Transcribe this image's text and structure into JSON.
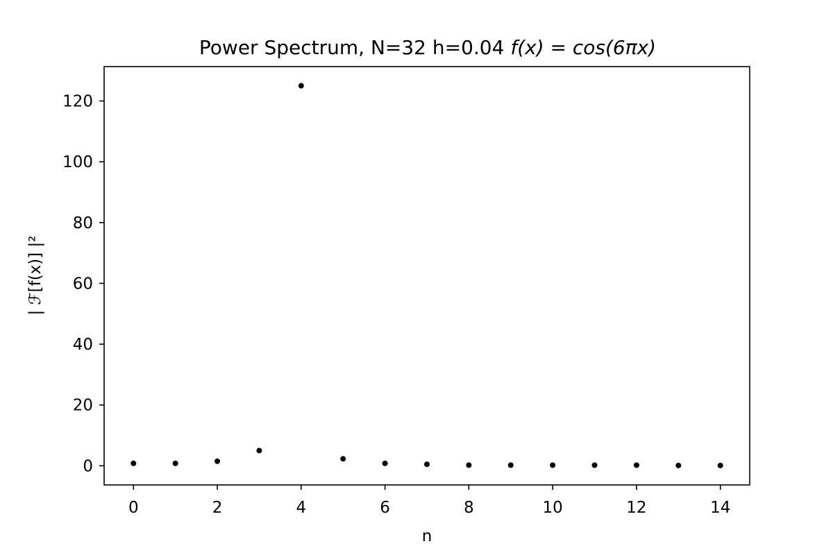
{
  "chart_data": {
    "type": "scatter",
    "title_main": "Power Spectrum, N=32  h=0.04 ",
    "title_math": "f(x) = cos(6πx)",
    "xlabel": "n",
    "ylabel": "| ℱ[f(x)] |²",
    "x": [
      0,
      1,
      2,
      3,
      4,
      5,
      6,
      7,
      8,
      9,
      10,
      11,
      12,
      13,
      14
    ],
    "y": [
      0.8,
      0.8,
      1.5,
      5.0,
      125.0,
      2.3,
      0.8,
      0.5,
      0.2,
      0.2,
      0.2,
      0.2,
      0.2,
      0.1,
      0.1
    ],
    "xlim": [
      -0.7,
      14.7
    ],
    "ylim": [
      -6.3,
      131.3
    ],
    "xticks": [
      0,
      2,
      4,
      6,
      8,
      10,
      12,
      14
    ],
    "yticks": [
      0,
      20,
      40,
      60,
      80,
      100,
      120
    ],
    "xtick_labels": [
      "0",
      "2",
      "4",
      "6",
      "8",
      "10",
      "12",
      "14"
    ],
    "ytick_labels": [
      "0",
      "20",
      "40",
      "60",
      "80",
      "100",
      "120"
    ],
    "marker_color": "#000000",
    "grid": false,
    "legend": "none"
  }
}
